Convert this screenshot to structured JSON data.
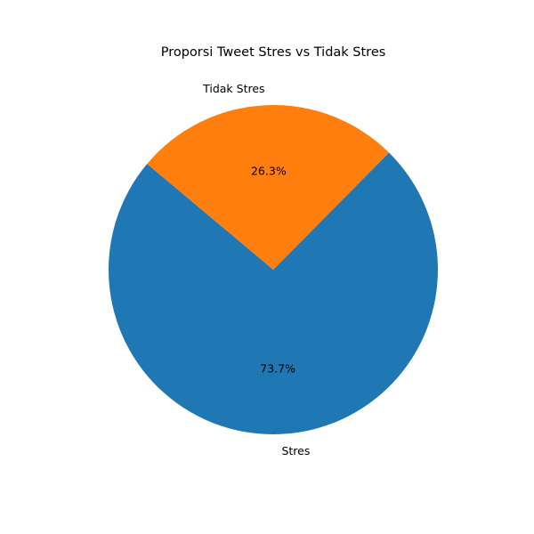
{
  "chart_data": {
    "type": "pie",
    "title": "Proporsi Tweet Stres vs Tidak Stres",
    "categories": [
      "Stres",
      "Tidak Stres"
    ],
    "values": [
      73.7,
      26.3
    ],
    "percent_labels": [
      "73.7%",
      "26.3%"
    ],
    "colors": [
      "#1f77b4",
      "#ff7f0e"
    ],
    "start_angle_deg": 140,
    "direction": "counterclockwise",
    "legend": "none"
  }
}
